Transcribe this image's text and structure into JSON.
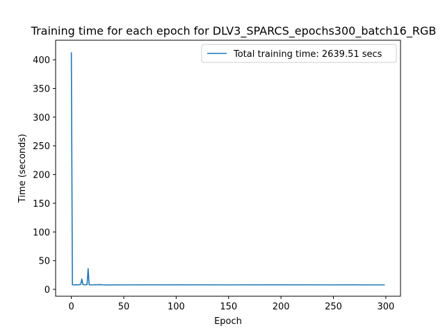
{
  "chart_data": {
    "type": "line",
    "title": "Training time for each epoch for DLV3_SPARCS_epochs300_batch16_RGB",
    "xlabel": "Epoch",
    "ylabel": "Time (seconds)",
    "xlim": [
      -15,
      314
    ],
    "ylim": [
      -12,
      434
    ],
    "xticks": [
      0,
      50,
      100,
      150,
      200,
      250,
      300
    ],
    "yticks": [
      0,
      50,
      100,
      150,
      200,
      250,
      300,
      350,
      400
    ],
    "grid": false,
    "legend": {
      "position": "top-right"
    },
    "series": [
      {
        "name": "Total training time: 2639.51 secs",
        "color": "#1f77b4",
        "x": [
          0,
          1,
          2,
          3,
          4,
          5,
          6,
          7,
          8,
          9,
          10,
          11,
          12,
          13,
          14,
          15,
          16,
          17,
          18,
          20,
          25,
          28,
          30,
          35,
          50,
          100,
          150,
          200,
          250,
          270,
          280,
          290,
          299
        ],
        "y": [
          413,
          8,
          7.8,
          7.8,
          7.9,
          8,
          7.8,
          8,
          8.2,
          9,
          18,
          8.5,
          8,
          7.9,
          8,
          8.5,
          36,
          8,
          7.8,
          7.8,
          8,
          8.2,
          7.8,
          7.7,
          7.8,
          7.9,
          7.8,
          7.9,
          7.8,
          7.9,
          7.8,
          7.8,
          7.8
        ]
      }
    ]
  }
}
